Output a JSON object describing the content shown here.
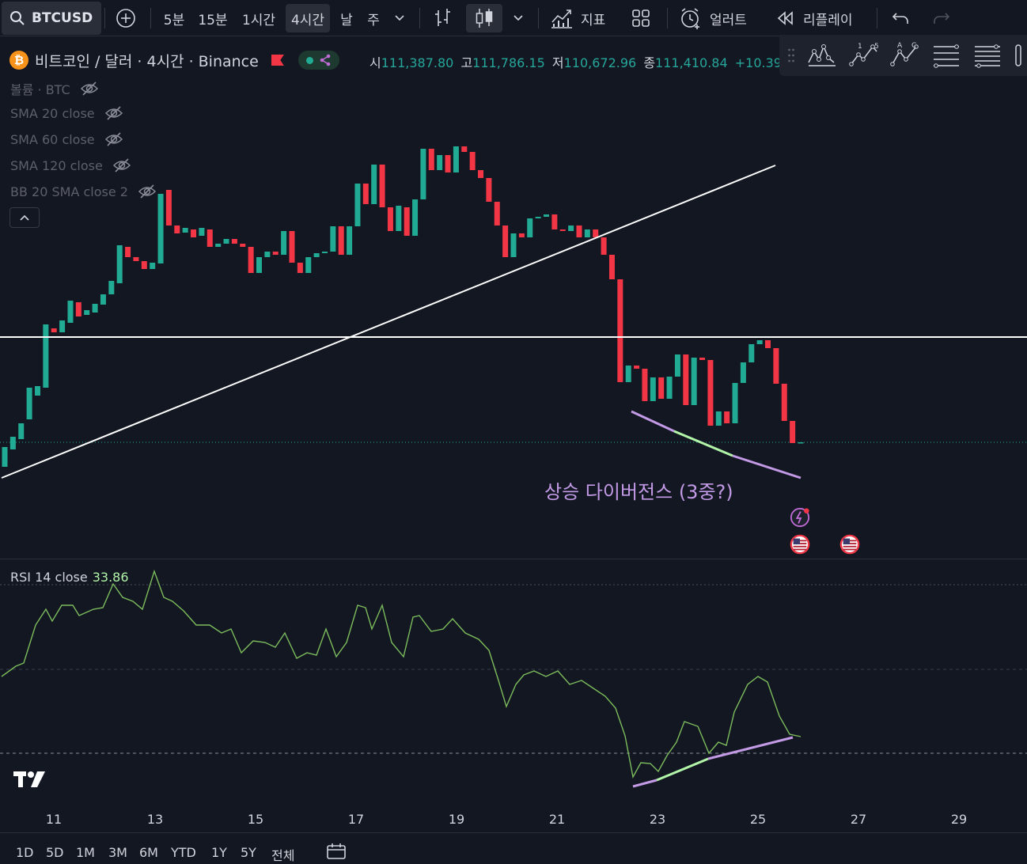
{
  "toolbar": {
    "symbol": "BTCUSD",
    "intervals": [
      "5분",
      "15분",
      "1시간",
      "4시간",
      "날",
      "주"
    ],
    "active_interval": "4시간",
    "indicators_label": "지표",
    "alert_label": "얼러트",
    "replay_label": "리플레이"
  },
  "legend": {
    "coin_symbol": "₿",
    "title": "비트코인 / 달러 · 4시간 · Binance",
    "open_key": "시",
    "open": "111,387.80",
    "high_key": "고",
    "high": "111,786.15",
    "low_key": "저",
    "low": "110,672.96",
    "close_key": "종",
    "close": "111,410.84",
    "change": "+10.39 ("
  },
  "indicators": [
    {
      "label": "볼륨 · BTC"
    },
    {
      "label": "SMA 20 close"
    },
    {
      "label": "SMA 60 close"
    },
    {
      "label": "SMA 120 close"
    },
    {
      "label": "BB 20 SMA close 2"
    }
  ],
  "rsi": {
    "label": "RSI 14 close",
    "value": "33.86"
  },
  "annotation": "상승 다이버전스 (3중?)",
  "x_axis": [
    "11",
    "13",
    "15",
    "17",
    "19",
    "21",
    "23",
    "25",
    "27",
    "29"
  ],
  "range_buttons": [
    "1D",
    "5D",
    "1M",
    "3M",
    "6M",
    "YTD",
    "1Y",
    "5Y",
    "전체"
  ],
  "colors": {
    "up": "#22ab94",
    "down": "#f23645",
    "background": "#131722",
    "divergence_purple": "#c39ae6",
    "divergence_green": "#b2f5a8"
  },
  "drawing_tools": [
    "pattern-icon",
    "elliott-15-icon",
    "abc-icon",
    "fib-icon",
    "fib-channel-icon"
  ]
}
